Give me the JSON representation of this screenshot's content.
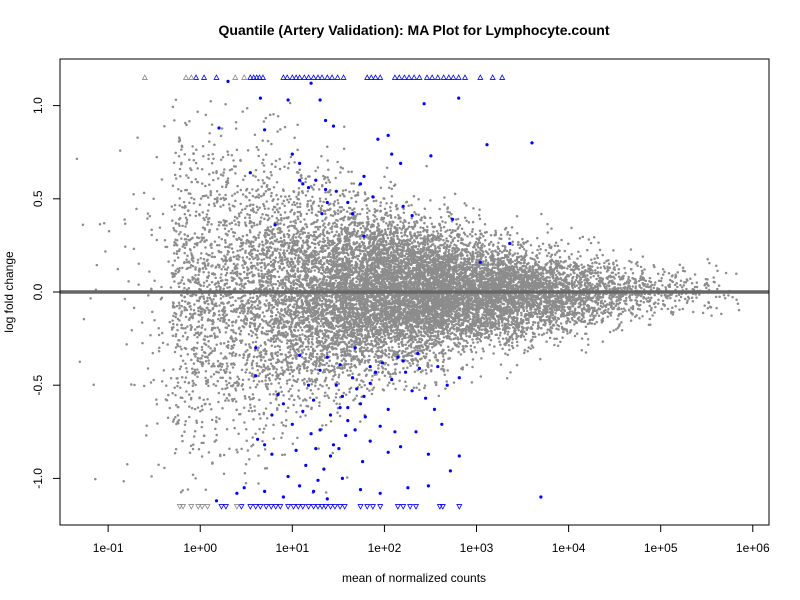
{
  "chart_data": {
    "type": "scatter",
    "title": "Quantile (Artery Validation): MA Plot for Lymphocyte.count",
    "xlabel": "mean of normalized counts",
    "ylabel": "log fold change",
    "x_scale": "log10",
    "xlim": [
      0.03,
      1500000
    ],
    "ylim": [
      -1.25,
      1.25
    ],
    "x_ticks": [
      {
        "value": 0.1,
        "label": "1e-01"
      },
      {
        "value": 1,
        "label": "1e+00"
      },
      {
        "value": 10,
        "label": "1e+01"
      },
      {
        "value": 100,
        "label": "1e+02"
      },
      {
        "value": 1000,
        "label": "1e+03"
      },
      {
        "value": 10000,
        "label": "1e+04"
      },
      {
        "value": 100000,
        "label": "1e+05"
      },
      {
        "value": 1000000,
        "label": "1e+06"
      }
    ],
    "y_ticks": [
      {
        "value": -1.0,
        "label": "-1.0"
      },
      {
        "value": -0.5,
        "label": "-0.5"
      },
      {
        "value": 0.0,
        "label": "0.0"
      },
      {
        "value": 0.5,
        "label": "0.5"
      },
      {
        "value": 1.0,
        "label": "1.0"
      }
    ],
    "grid": false,
    "legend": "none",
    "reference_line": {
      "y": 0,
      "color": "#666666"
    },
    "colors": {
      "non_significant": "#8c8c8c",
      "significant": "#0000ff",
      "axis": "#000000"
    },
    "series": [
      {
        "color": "#0000ff",
        "marker": "point",
        "points": [
          [
            2.0,
            1.13
          ],
          [
            4.5,
            1.04
          ],
          [
            9.0,
            1.03
          ],
          [
            16.0,
            1.12
          ],
          [
            20.0,
            1.03
          ],
          [
            23.0,
            0.92
          ],
          [
            28.0,
            0.89
          ],
          [
            85.0,
            0.82
          ],
          [
            110.0,
            0.84
          ],
          [
            270.0,
            1.01
          ],
          [
            640.0,
            1.04
          ],
          [
            1300.0,
            0.79
          ],
          [
            4000.0,
            0.8
          ],
          [
            1.6,
            0.88
          ],
          [
            5.0,
            0.87
          ],
          [
            10.0,
            0.74
          ],
          [
            12.0,
            0.69
          ],
          [
            3.5,
            0.64
          ],
          [
            12.0,
            0.6
          ],
          [
            13.0,
            0.58
          ],
          [
            15.0,
            0.56
          ],
          [
            18.0,
            0.6
          ],
          [
            24.0,
            0.48
          ],
          [
            30.0,
            0.54
          ],
          [
            40.0,
            0.48
          ],
          [
            55.0,
            0.58
          ],
          [
            60.0,
            0.62
          ],
          [
            75.0,
            0.51
          ],
          [
            120.0,
            0.74
          ],
          [
            150.0,
            0.69
          ],
          [
            320.0,
            0.73
          ],
          [
            160.0,
            0.46
          ],
          [
            200.0,
            0.41
          ],
          [
            550.0,
            0.39
          ],
          [
            23.0,
            0.55
          ],
          [
            45.0,
            0.42
          ],
          [
            21.0,
            0.42
          ],
          [
            6.5,
            0.36
          ],
          [
            60.0,
            0.3
          ],
          [
            1100.0,
            0.16
          ],
          [
            2300.0,
            0.26
          ],
          [
            4.0,
            -0.45
          ],
          [
            7.0,
            -0.55
          ],
          [
            8.0,
            -0.6
          ],
          [
            10.0,
            -0.71
          ],
          [
            13.0,
            -0.64
          ],
          [
            15.0,
            -0.5
          ],
          [
            17.0,
            -0.58
          ],
          [
            20.0,
            -0.42
          ],
          [
            24.0,
            -0.35
          ],
          [
            30.0,
            -0.5
          ],
          [
            35.0,
            -0.56
          ],
          [
            40.0,
            -0.62
          ],
          [
            45.0,
            -0.46
          ],
          [
            50.0,
            -0.52
          ],
          [
            55.0,
            -0.6
          ],
          [
            60.0,
            -0.56
          ],
          [
            70.0,
            -0.49
          ],
          [
            80.0,
            -0.43
          ],
          [
            95.0,
            -0.38
          ],
          [
            120.0,
            -0.47
          ],
          [
            140.0,
            -0.35
          ],
          [
            160.0,
            -0.37
          ],
          [
            200.0,
            -0.53
          ],
          [
            240.0,
            -0.41
          ],
          [
            280.0,
            -0.57
          ],
          [
            380.0,
            -0.4
          ],
          [
            650.0,
            -0.46
          ],
          [
            5.0,
            -0.82
          ],
          [
            6.0,
            -0.87
          ],
          [
            9.0,
            -0.99
          ],
          [
            11.0,
            -0.85
          ],
          [
            14.0,
            -0.93
          ],
          [
            16.0,
            -0.76
          ],
          [
            19.0,
            -1.01
          ],
          [
            22.0,
            -0.95
          ],
          [
            26.0,
            -0.88
          ],
          [
            32.0,
            -0.84
          ],
          [
            38.0,
            -0.77
          ],
          [
            48.0,
            -0.74
          ],
          [
            58.0,
            -0.91
          ],
          [
            70.0,
            -0.8
          ],
          [
            90.0,
            -0.72
          ],
          [
            110.0,
            -0.86
          ],
          [
            130.0,
            -0.75
          ],
          [
            150.0,
            -0.83
          ],
          [
            220.0,
            -0.75
          ],
          [
            300.0,
            -0.87
          ],
          [
            420.0,
            -0.71
          ],
          [
            520.0,
            -0.96
          ],
          [
            650.0,
            -0.88
          ],
          [
            3.0,
            -1.05
          ],
          [
            5.0,
            -1.07
          ],
          [
            8.0,
            -1.1
          ],
          [
            12.0,
            -1.04
          ],
          [
            17.0,
            -1.07
          ],
          [
            24.0,
            -1.11
          ],
          [
            35.0,
            -1.0
          ],
          [
            55.0,
            -1.06
          ],
          [
            90.0,
            -1.08
          ],
          [
            180.0,
            -1.05
          ],
          [
            300.0,
            -1.04
          ],
          [
            5000.0,
            -1.1
          ],
          [
            2.5,
            -1.08
          ],
          [
            4.2,
            -0.79
          ],
          [
            6.0,
            -0.66
          ],
          [
            26.0,
            -0.66
          ],
          [
            33.0,
            -0.62
          ],
          [
            110.0,
            -0.63
          ],
          [
            170.0,
            -0.43
          ],
          [
            230.0,
            -0.33
          ],
          [
            33.0,
            -0.39
          ],
          [
            12.0,
            -0.34
          ],
          [
            20.0,
            -0.74
          ],
          [
            28.0,
            -0.82
          ],
          [
            350.0,
            -0.63
          ],
          [
            480.0,
            -0.5
          ],
          [
            48.0,
            -0.3
          ],
          [
            18.0,
            -0.84
          ],
          [
            40.0,
            -0.69
          ],
          [
            62.0,
            -0.67
          ],
          [
            70.0,
            -0.4
          ],
          [
            4.0,
            -0.3
          ],
          [
            1.5,
            -1.12
          ]
        ]
      },
      {
        "color": "#0000ff",
        "marker": "triangle-up",
        "points": [
          [
            3.5,
            1.15
          ],
          [
            3.8,
            1.15
          ],
          [
            4.1,
            1.15
          ],
          [
            4.4,
            1.15
          ],
          [
            4.8,
            1.15
          ],
          [
            8.0,
            1.15
          ],
          [
            8.8,
            1.15
          ],
          [
            10.0,
            1.15
          ],
          [
            11.0,
            1.15
          ],
          [
            12.0,
            1.15
          ],
          [
            13.5,
            1.15
          ],
          [
            15.0,
            1.15
          ],
          [
            17.0,
            1.15
          ],
          [
            19.0,
            1.15
          ],
          [
            21.0,
            1.15
          ],
          [
            24.0,
            1.15
          ],
          [
            27.0,
            1.15
          ],
          [
            31.0,
            1.15
          ],
          [
            36.0,
            1.15
          ],
          [
            65.0,
            1.15
          ],
          [
            72.0,
            1.15
          ],
          [
            80.0,
            1.15
          ],
          [
            90.0,
            1.15
          ],
          [
            130.0,
            1.15
          ],
          [
            145.0,
            1.15
          ],
          [
            165.0,
            1.15
          ],
          [
            185.0,
            1.15
          ],
          [
            210.0,
            1.15
          ],
          [
            240.0,
            1.15
          ],
          [
            290.0,
            1.15
          ],
          [
            330.0,
            1.15
          ],
          [
            380.0,
            1.15
          ],
          [
            440.0,
            1.15
          ],
          [
            500.0,
            1.15
          ],
          [
            560.0,
            1.15
          ],
          [
            640.0,
            1.15
          ],
          [
            750.0,
            1.15
          ],
          [
            1100.0,
            1.15
          ],
          [
            1500.0,
            1.15
          ],
          [
            1900.0,
            1.15
          ],
          [
            0.9,
            1.15
          ],
          [
            1.1,
            1.15
          ],
          [
            1.5,
            1.15
          ]
        ]
      },
      {
        "color": "#888888",
        "marker": "triangle-up",
        "points": [
          [
            0.25,
            1.15
          ],
          [
            0.7,
            1.15
          ],
          [
            0.8,
            1.15
          ],
          [
            2.4,
            1.15
          ],
          [
            3.0,
            1.15
          ]
        ]
      },
      {
        "color": "#0000ff",
        "marker": "triangle-down",
        "points": [
          [
            1.7,
            -1.15
          ],
          [
            1.9,
            -1.15
          ],
          [
            2.8,
            -1.15
          ],
          [
            3.5,
            -1.15
          ],
          [
            4.0,
            -1.15
          ],
          [
            4.5,
            -1.15
          ],
          [
            5.2,
            -1.15
          ],
          [
            5.9,
            -1.15
          ],
          [
            6.6,
            -1.15
          ],
          [
            7.4,
            -1.15
          ],
          [
            9.0,
            -1.15
          ],
          [
            10.3,
            -1.15
          ],
          [
            11.6,
            -1.15
          ],
          [
            13.0,
            -1.15
          ],
          [
            15.0,
            -1.15
          ],
          [
            17.0,
            -1.15
          ],
          [
            19.0,
            -1.15
          ],
          [
            21.0,
            -1.15
          ],
          [
            23.0,
            -1.15
          ],
          [
            26.0,
            -1.15
          ],
          [
            29.0,
            -1.15
          ],
          [
            33.0,
            -1.15
          ],
          [
            37.0,
            -1.15
          ],
          [
            55.0,
            -1.15
          ],
          [
            65.0,
            -1.15
          ],
          [
            75.0,
            -1.15
          ],
          [
            90.0,
            -1.15
          ],
          [
            140.0,
            -1.15
          ],
          [
            160.0,
            -1.15
          ],
          [
            190.0,
            -1.15
          ],
          [
            220.0,
            -1.15
          ],
          [
            400.0,
            -1.15
          ],
          [
            430.0,
            -1.15
          ],
          [
            650.0,
            -1.15
          ]
        ]
      },
      {
        "color": "#888888",
        "marker": "triangle-down",
        "points": [
          [
            0.6,
            -1.15
          ],
          [
            0.65,
            -1.15
          ],
          [
            0.8,
            -1.15
          ],
          [
            0.95,
            -1.15
          ],
          [
            1.05,
            -1.15
          ],
          [
            1.2,
            -1.15
          ],
          [
            2.5,
            -1.15
          ]
        ]
      }
    ],
    "background_cloud": {
      "color": "#8c8c8c",
      "description_free": true,
      "centers_log10_x": [
        -1.3,
        6.0
      ],
      "note": ""
    }
  }
}
